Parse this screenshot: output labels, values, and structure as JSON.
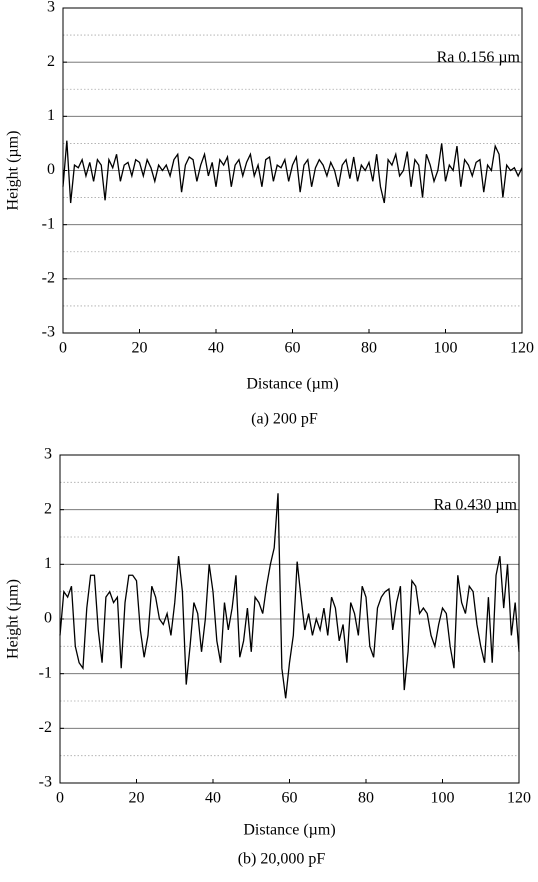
{
  "chart_data": [
    {
      "type": "line",
      "title": "(a) 200 pF",
      "xlabel": "Distance (µm)",
      "ylabel": "Height (µm)",
      "annotation": "Ra 0.156 µm",
      "xlim": [
        0,
        120
      ],
      "xticks": [
        0,
        20,
        40,
        60,
        80,
        100,
        120
      ],
      "ylim": [
        -3,
        3
      ],
      "yticks": [
        -3,
        -2,
        -1,
        0,
        1,
        2,
        3
      ],
      "yminorticks": [
        -2.5,
        -1.5,
        -0.5,
        0.5,
        1.5,
        2.5
      ],
      "grid": true,
      "x": [
        0,
        1,
        2,
        3,
        4,
        5,
        6,
        7,
        8,
        9,
        10,
        11,
        12,
        13,
        14,
        15,
        16,
        17,
        18,
        19,
        20,
        21,
        22,
        23,
        24,
        25,
        26,
        27,
        28,
        29,
        30,
        31,
        32,
        33,
        34,
        35,
        36,
        37,
        38,
        39,
        40,
        41,
        42,
        43,
        44,
        45,
        46,
        47,
        48,
        49,
        50,
        51,
        52,
        53,
        54,
        55,
        56,
        57,
        58,
        59,
        60,
        61,
        62,
        63,
        64,
        65,
        66,
        67,
        68,
        69,
        70,
        71,
        72,
        73,
        74,
        75,
        76,
        77,
        78,
        79,
        80,
        81,
        82,
        83,
        84,
        85,
        86,
        87,
        88,
        89,
        90,
        91,
        92,
        93,
        94,
        95,
        96,
        97,
        98,
        99,
        100,
        101,
        102,
        103,
        104,
        105,
        106,
        107,
        108,
        109,
        110,
        111,
        112,
        113,
        114,
        115,
        116,
        117,
        118,
        119,
        120
      ],
      "series": [
        {
          "name": null,
          "color": "#000000",
          "values": [
            -0.3,
            0.55,
            -0.6,
            0.1,
            0.05,
            0.2,
            -0.1,
            0.15,
            -0.2,
            0.2,
            0.1,
            -0.55,
            0.2,
            0.05,
            0.3,
            -0.2,
            0.1,
            0.15,
            -0.1,
            0.2,
            0.15,
            -0.1,
            0.2,
            0.05,
            -0.2,
            0.1,
            0.0,
            0.1,
            -0.1,
            0.2,
            0.3,
            -0.4,
            0.1,
            0.25,
            0.2,
            -0.2,
            0.1,
            0.3,
            -0.1,
            0.15,
            -0.3,
            0.2,
            0.1,
            0.25,
            -0.3,
            0.1,
            0.2,
            -0.1,
            0.15,
            0.3,
            -0.1,
            0.1,
            -0.3,
            0.2,
            0.25,
            -0.2,
            0.1,
            0.05,
            0.2,
            -0.2,
            0.1,
            0.25,
            -0.4,
            0.1,
            0.2,
            -0.3,
            0.05,
            0.2,
            0.1,
            -0.1,
            0.15,
            0.0,
            -0.3,
            0.1,
            0.2,
            -0.15,
            0.25,
            -0.2,
            0.1,
            0.0,
            0.15,
            -0.2,
            0.3,
            -0.3,
            -0.6,
            0.2,
            0.1,
            0.3,
            -0.1,
            0.0,
            0.35,
            -0.3,
            0.2,
            0.1,
            -0.5,
            0.3,
            0.1,
            -0.2,
            0.0,
            0.5,
            -0.2,
            0.1,
            0.0,
            0.45,
            -0.3,
            0.2,
            0.1,
            -0.1,
            0.15,
            0.2,
            -0.4,
            0.1,
            0.0,
            0.45,
            0.3,
            -0.5,
            0.1,
            0.0,
            0.05,
            -0.1,
            0.05
          ]
        }
      ]
    },
    {
      "type": "line",
      "title": "(b) 20,000 pF",
      "xlabel": "Distance (µm)",
      "ylabel": "Height (µm)",
      "annotation": "Ra 0.430 µm",
      "xlim": [
        0,
        120
      ],
      "xticks": [
        0,
        20,
        40,
        60,
        80,
        100,
        120
      ],
      "ylim": [
        -3,
        3
      ],
      "yticks": [
        -3,
        -2,
        -1,
        0,
        1,
        2,
        3
      ],
      "yminorticks": [
        -2.5,
        -1.5,
        -0.5,
        0.5,
        1.5,
        2.5
      ],
      "grid": true,
      "x": [
        0,
        1,
        2,
        3,
        4,
        5,
        6,
        7,
        8,
        9,
        10,
        11,
        12,
        13,
        14,
        15,
        16,
        17,
        18,
        19,
        20,
        21,
        22,
        23,
        24,
        25,
        26,
        27,
        28,
        29,
        30,
        31,
        32,
        33,
        34,
        35,
        36,
        37,
        38,
        39,
        40,
        41,
        42,
        43,
        44,
        45,
        46,
        47,
        48,
        49,
        50,
        51,
        52,
        53,
        54,
        55,
        56,
        57,
        58,
        59,
        60,
        61,
        62,
        63,
        64,
        65,
        66,
        67,
        68,
        69,
        70,
        71,
        72,
        73,
        74,
        75,
        76,
        77,
        78,
        79,
        80,
        81,
        82,
        83,
        84,
        85,
        86,
        87,
        88,
        89,
        90,
        91,
        92,
        93,
        94,
        95,
        96,
        97,
        98,
        99,
        100,
        101,
        102,
        103,
        104,
        105,
        106,
        107,
        108,
        109,
        110,
        111,
        112,
        113,
        114,
        115,
        116,
        117,
        118,
        119,
        120
      ],
      "series": [
        {
          "name": null,
          "color": "#000000",
          "values": [
            -0.3,
            0.5,
            0.4,
            0.6,
            -0.5,
            -0.8,
            -0.9,
            0.2,
            0.8,
            0.8,
            -0.2,
            -0.8,
            0.4,
            0.5,
            0.3,
            0.4,
            -0.9,
            0.3,
            0.8,
            0.8,
            0.7,
            -0.2,
            -0.7,
            -0.3,
            0.6,
            0.4,
            0.0,
            -0.1,
            0.1,
            -0.3,
            0.3,
            1.15,
            0.5,
            -1.2,
            -0.5,
            0.3,
            0.1,
            -0.6,
            0.0,
            1.0,
            0.5,
            -0.4,
            -0.8,
            0.3,
            -0.2,
            0.2,
            0.8,
            -0.7,
            -0.4,
            0.2,
            -0.6,
            0.4,
            0.3,
            0.1,
            0.6,
            1.0,
            1.3,
            2.3,
            -0.9,
            -1.45,
            -0.8,
            -0.3,
            1.05,
            0.4,
            -0.2,
            0.1,
            -0.3,
            0.0,
            -0.2,
            0.2,
            -0.3,
            0.4,
            0.2,
            -0.4,
            -0.1,
            -0.8,
            0.3,
            0.1,
            -0.3,
            0.6,
            0.4,
            -0.5,
            -0.7,
            0.2,
            0.4,
            0.5,
            0.55,
            -0.2,
            0.3,
            0.6,
            -1.3,
            -0.6,
            0.7,
            0.6,
            0.1,
            0.2,
            0.1,
            -0.3,
            -0.5,
            -0.1,
            0.2,
            0.1,
            -0.5,
            -0.9,
            0.8,
            0.3,
            0.1,
            0.6,
            0.5,
            -0.1,
            -0.5,
            -0.8,
            0.4,
            -0.8,
            0.8,
            1.15,
            0.2,
            1.0,
            -0.3,
            0.3,
            -0.6
          ]
        }
      ]
    }
  ]
}
